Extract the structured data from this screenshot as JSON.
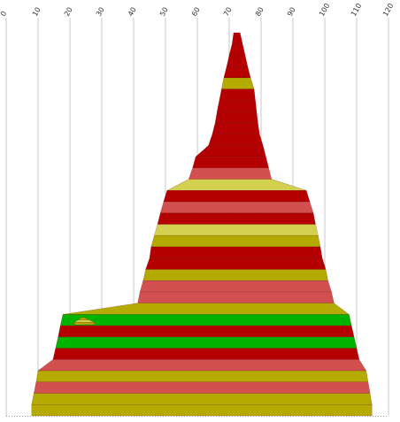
{
  "chart_data": {
    "type": "area",
    "orientation": "horizontal",
    "grid": true,
    "xlim": [
      0,
      120
    ],
    "x_ticks": [
      "0",
      "10",
      "20",
      "30",
      "40",
      "50",
      "60",
      "70",
      "80",
      "90",
      "100",
      "110",
      "120"
    ],
    "colors": {
      "red": "#b40000",
      "pink": "#d35050",
      "olive": "#b5aa00",
      "pale": "#d4d04f",
      "green": "#00b300"
    },
    "bands": [
      {
        "left": 71.4,
        "right": 73.4,
        "color": "red"
      },
      {
        "left": 70.9,
        "right": 74.2,
        "color": "red"
      },
      {
        "left": 70.0,
        "right": 75.0,
        "color": "red"
      },
      {
        "left": 69.2,
        "right": 75.8,
        "color": "red"
      },
      {
        "left": 68.3,
        "right": 76.7,
        "color": "olive"
      },
      {
        "left": 67.6,
        "right": 77.8,
        "color": "red"
      },
      {
        "left": 66.9,
        "right": 78.2,
        "color": "red"
      },
      {
        "left": 66.2,
        "right": 78.6,
        "color": "red"
      },
      {
        "left": 65.6,
        "right": 79.0,
        "color": "red"
      },
      {
        "left": 64.7,
        "right": 79.5,
        "color": "red"
      },
      {
        "left": 63.5,
        "right": 80.6,
        "color": "red"
      },
      {
        "left": 59.5,
        "right": 81.5,
        "color": "red"
      },
      {
        "left": 58.5,
        "right": 82.4,
        "color": "pink"
      },
      {
        "left": 57.3,
        "right": 83.3,
        "color": "pale"
      },
      {
        "left": 50.5,
        "right": 94.2,
        "color": "red"
      },
      {
        "left": 49.4,
        "right": 95.3,
        "color": "pink"
      },
      {
        "left": 48.4,
        "right": 96.4,
        "color": "red"
      },
      {
        "left": 47.5,
        "right": 97.1,
        "color": "pale"
      },
      {
        "left": 46.5,
        "right": 97.9,
        "color": "olive"
      },
      {
        "left": 45.5,
        "right": 98.6,
        "color": "red"
      },
      {
        "left": 45.0,
        "right": 99.2,
        "color": "red"
      },
      {
        "left": 43.8,
        "right": 100.3,
        "color": "olive"
      },
      {
        "left": 43.0,
        "right": 101.0,
        "color": "pink"
      },
      {
        "left": 42.0,
        "right": 102.1,
        "color": "pink"
      },
      {
        "left": 41.3,
        "right": 102.9,
        "color": "olive"
      },
      {
        "left": 17.8,
        "right": 107.6,
        "color": "green"
      },
      {
        "left": 17.0,
        "right": 108.4,
        "color": "red"
      },
      {
        "left": 16.3,
        "right": 109.2,
        "color": "green"
      },
      {
        "left": 15.5,
        "right": 110.0,
        "color": "red"
      },
      {
        "left": 14.7,
        "right": 110.8,
        "color": "pink"
      },
      {
        "left": 10.0,
        "right": 113.0,
        "color": "olive"
      },
      {
        "left": 9.4,
        "right": 113.6,
        "color": "pink"
      },
      {
        "left": 8.7,
        "right": 114.2,
        "color": "olive"
      },
      {
        "left": 8.0,
        "right": 114.8,
        "color": "olive"
      }
    ],
    "side_peak": [
      {
        "left": 23.6,
        "right": 24.6,
        "color": "olive"
      },
      {
        "left": 22.6,
        "right": 26.0,
        "color": "pale"
      },
      {
        "left": 21.4,
        "right": 27.7,
        "color": "olive"
      }
    ]
  }
}
